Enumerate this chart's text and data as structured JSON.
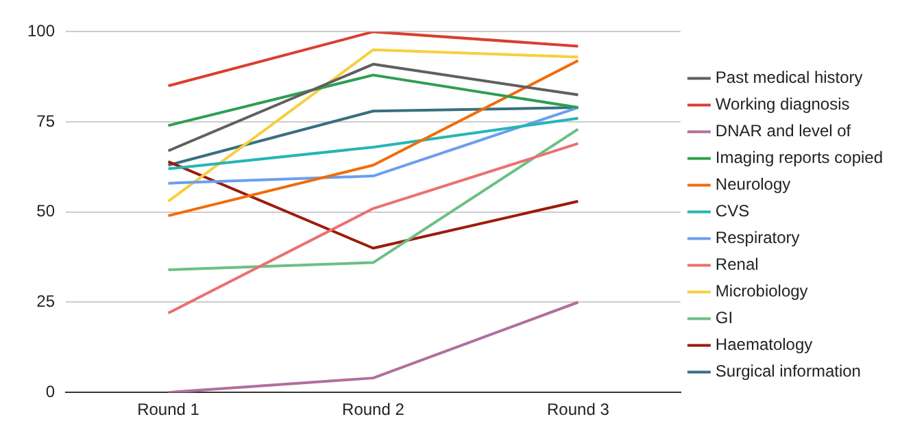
{
  "chart_data": {
    "type": "line",
    "categories": [
      "Round 1",
      "Round 2",
      "Round 3"
    ],
    "series": [
      {
        "name": "Past medical history",
        "color": "#5f5f5f",
        "values": [
          67,
          91,
          82.5
        ]
      },
      {
        "name": "Working diagnosis",
        "color": "#db3e2f",
        "values": [
          85,
          100,
          96
        ]
      },
      {
        "name": "DNAR and level of",
        "color": "#b06f9e",
        "values": [
          0,
          4,
          25
        ]
      },
      {
        "name": "Imaging reports copied",
        "color": "#2e9e4f",
        "values": [
          74,
          88,
          79
        ]
      },
      {
        "name": "Neurology",
        "color": "#f26b08",
        "values": [
          49,
          63,
          92
        ]
      },
      {
        "name": "CVS",
        "color": "#26b5b5",
        "values": [
          62,
          68,
          76
        ]
      },
      {
        "name": "Respiratory",
        "color": "#6b9ef0",
        "values": [
          58,
          60,
          79
        ]
      },
      {
        "name": "Renal",
        "color": "#ea7070",
        "values": [
          22,
          51,
          69
        ]
      },
      {
        "name": "Microbiology",
        "color": "#f7cf3c",
        "values": [
          53,
          95,
          93
        ]
      },
      {
        "name": "GI",
        "color": "#6cbf84",
        "values": [
          34,
          36,
          73
        ]
      },
      {
        "name": "Haematology",
        "color": "#9c1c0a",
        "values": [
          64,
          40,
          53
        ]
      },
      {
        "name": "Surgical information",
        "color": "#3a6f80",
        "values": [
          63,
          78,
          79
        ]
      }
    ],
    "ylim": [
      0,
      100
    ],
    "yticks": [
      0,
      25,
      50,
      75,
      100
    ],
    "grid": "y",
    "legend": "right",
    "marker": "none",
    "line_style": "solid"
  }
}
